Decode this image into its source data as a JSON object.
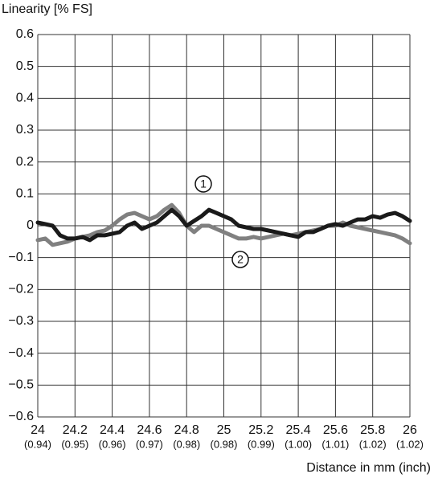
{
  "chart_data": {
    "type": "line",
    "y_label": "Linearity [% FS]",
    "x_label": "Distance in mm (inch)",
    "x": [
      24.0,
      24.04,
      24.08,
      24.12,
      24.16,
      24.2,
      24.24,
      24.28,
      24.32,
      24.36,
      24.4,
      24.44,
      24.48,
      24.52,
      24.56,
      24.6,
      24.64,
      24.68,
      24.72,
      24.76,
      24.8,
      24.84,
      24.88,
      24.92,
      24.96,
      25.0,
      25.04,
      25.08,
      25.12,
      25.16,
      25.2,
      25.24,
      25.28,
      25.32,
      25.36,
      25.4,
      25.44,
      25.48,
      25.52,
      25.56,
      25.6,
      25.64,
      25.68,
      25.72,
      25.76,
      25.8,
      25.84,
      25.88,
      25.92,
      25.96,
      26.0
    ],
    "series": [
      {
        "name": "1",
        "color": "#1a1a1a",
        "values": [
          0.01,
          0.005,
          0.0,
          -0.03,
          -0.04,
          -0.04,
          -0.035,
          -0.045,
          -0.03,
          -0.03,
          -0.025,
          -0.02,
          0.0,
          0.01,
          -0.01,
          0.0,
          0.01,
          0.03,
          0.05,
          0.03,
          0.0,
          0.015,
          0.03,
          0.05,
          0.04,
          0.03,
          0.02,
          0.0,
          -0.005,
          -0.01,
          -0.01,
          -0.015,
          -0.02,
          -0.025,
          -0.03,
          -0.035,
          -0.02,
          -0.02,
          -0.01,
          0.0,
          0.005,
          0.0,
          0.01,
          0.02,
          0.02,
          0.03,
          0.025,
          0.035,
          0.04,
          0.03,
          0.015
        ]
      },
      {
        "name": "2",
        "color": "#808080",
        "values": [
          -0.045,
          -0.04,
          -0.06,
          -0.055,
          -0.05,
          -0.04,
          -0.035,
          -0.03,
          -0.02,
          -0.015,
          0.0,
          0.02,
          0.035,
          0.04,
          0.03,
          0.02,
          0.03,
          0.05,
          0.065,
          0.04,
          0.0,
          -0.02,
          0.0,
          0.0,
          -0.01,
          -0.02,
          -0.03,
          -0.04,
          -0.04,
          -0.035,
          -0.04,
          -0.035,
          -0.03,
          -0.025,
          -0.03,
          -0.025,
          -0.02,
          -0.015,
          -0.01,
          0.0,
          0.0,
          0.01,
          0.0,
          -0.005,
          -0.01,
          -0.015,
          -0.02,
          -0.025,
          -0.03,
          -0.04,
          -0.055
        ]
      }
    ],
    "xlim": [
      24,
      26
    ],
    "xticks": [
      24,
      24.2,
      24.4,
      24.6,
      24.8,
      25,
      25.2,
      25.4,
      25.6,
      25.8,
      26
    ],
    "x_secondary_ticklabels": [
      "(0.94)",
      "(0.95)",
      "(0.96)",
      "(0.97)",
      "(0.98)",
      "(0.98)",
      "(0.99)",
      "(1.00)",
      "(1.01)",
      "(1.02)",
      "(1.02)"
    ],
    "ylim": [
      -0.6,
      0.6
    ],
    "yticks": [
      {
        "value": -0.6,
        "label": "−0.6"
      },
      {
        "value": -0.5,
        "label": "−0.5"
      },
      {
        "value": -0.4,
        "label": "−0.4"
      },
      {
        "value": -0.3,
        "label": "−0.3"
      },
      {
        "value": -0.2,
        "label": "−0.2"
      },
      {
        "value": -0.1,
        "label": "−0.1"
      },
      0,
      0.1,
      0.2,
      0.3,
      0.4,
      0.5,
      0.6
    ],
    "grid": true
  }
}
